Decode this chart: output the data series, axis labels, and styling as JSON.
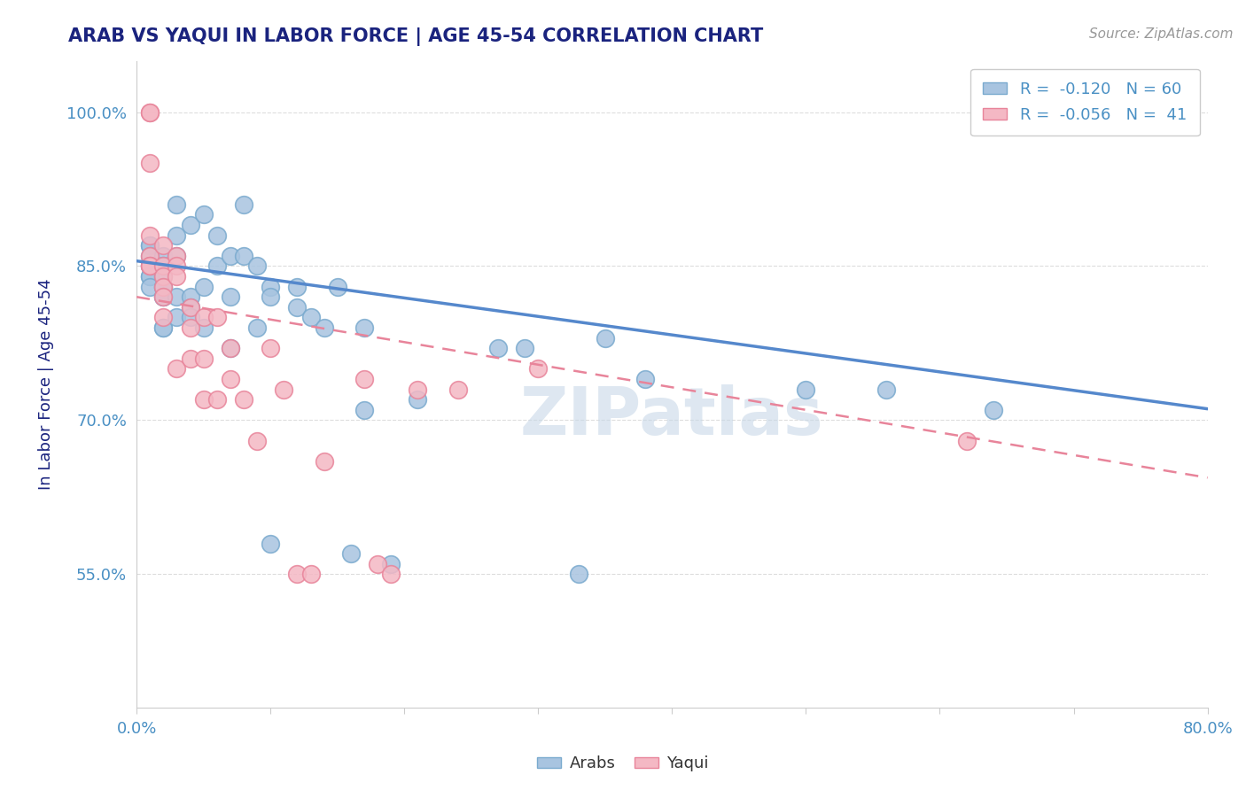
{
  "title": "ARAB VS YAQUI IN LABOR FORCE | AGE 45-54 CORRELATION CHART",
  "source_text": "Source: ZipAtlas.com",
  "xlabel": "",
  "ylabel": "In Labor Force | Age 45-54",
  "xlim": [
    0.0,
    0.8
  ],
  "ylim": [
    0.42,
    1.05
  ],
  "xticks": [
    0.0,
    0.1,
    0.2,
    0.3,
    0.4,
    0.5,
    0.6,
    0.7,
    0.8
  ],
  "xticklabels": [
    "0.0%",
    "",
    "",
    "",
    "",
    "",
    "",
    "",
    "80.0%"
  ],
  "ytick_positions": [
    0.55,
    0.7,
    0.85,
    1.0
  ],
  "ytick_labels": [
    "55.0%",
    "70.0%",
    "85.0%",
    "100.0%"
  ],
  "arab_color": "#a8c4e0",
  "yaqui_color": "#f4b8c4",
  "arab_edge_color": "#7aaace",
  "yaqui_edge_color": "#e8849a",
  "trendline_arab_color": "#5588cc",
  "trendline_yaqui_color": "#e8849a",
  "legend_arab_R": "-0.120",
  "legend_arab_N": "60",
  "legend_yaqui_R": "-0.056",
  "legend_yaqui_N": "41",
  "watermark": "ZIPatlas",
  "arab_x": [
    0.01,
    0.01,
    0.01,
    0.01,
    0.01,
    0.01,
    0.01,
    0.01,
    0.02,
    0.02,
    0.02,
    0.02,
    0.02,
    0.02,
    0.02,
    0.02,
    0.02,
    0.02,
    0.03,
    0.03,
    0.03,
    0.03,
    0.03,
    0.04,
    0.04,
    0.04,
    0.04,
    0.05,
    0.05,
    0.05,
    0.06,
    0.06,
    0.07,
    0.07,
    0.07,
    0.08,
    0.08,
    0.09,
    0.09,
    0.1,
    0.1,
    0.1,
    0.12,
    0.12,
    0.13,
    0.14,
    0.15,
    0.16,
    0.17,
    0.17,
    0.19,
    0.21,
    0.27,
    0.29,
    0.33,
    0.35,
    0.38,
    0.5,
    0.56,
    0.64
  ],
  "arab_y": [
    0.87,
    0.87,
    0.86,
    0.85,
    0.85,
    0.84,
    0.84,
    0.83,
    0.86,
    0.85,
    0.85,
    0.84,
    0.83,
    0.83,
    0.82,
    0.82,
    0.79,
    0.79,
    0.91,
    0.88,
    0.86,
    0.82,
    0.8,
    0.89,
    0.82,
    0.81,
    0.8,
    0.9,
    0.83,
    0.79,
    0.88,
    0.85,
    0.86,
    0.82,
    0.77,
    0.91,
    0.86,
    0.85,
    0.79,
    0.83,
    0.82,
    0.58,
    0.83,
    0.81,
    0.8,
    0.79,
    0.83,
    0.57,
    0.79,
    0.71,
    0.56,
    0.72,
    0.77,
    0.77,
    0.55,
    0.78,
    0.74,
    0.73,
    0.73,
    0.71
  ],
  "yaqui_x": [
    0.01,
    0.01,
    0.01,
    0.01,
    0.01,
    0.01,
    0.01,
    0.02,
    0.02,
    0.02,
    0.02,
    0.02,
    0.02,
    0.03,
    0.03,
    0.03,
    0.03,
    0.04,
    0.04,
    0.04,
    0.05,
    0.05,
    0.05,
    0.06,
    0.06,
    0.07,
    0.07,
    0.08,
    0.09,
    0.1,
    0.11,
    0.12,
    0.13,
    0.14,
    0.17,
    0.18,
    0.19,
    0.21,
    0.24,
    0.3,
    0.62
  ],
  "yaqui_y": [
    1.0,
    1.0,
    0.95,
    0.88,
    0.86,
    0.85,
    0.85,
    0.87,
    0.85,
    0.84,
    0.83,
    0.82,
    0.8,
    0.86,
    0.85,
    0.84,
    0.75,
    0.81,
    0.79,
    0.76,
    0.8,
    0.76,
    0.72,
    0.8,
    0.72,
    0.77,
    0.74,
    0.72,
    0.68,
    0.77,
    0.73,
    0.55,
    0.55,
    0.66,
    0.74,
    0.56,
    0.55,
    0.73,
    0.73,
    0.75,
    0.68
  ],
  "background_color": "#ffffff",
  "grid_color": "#dddddd",
  "title_color": "#1a237e",
  "axis_label_color": "#1a237e",
  "tick_color": "#4a90c4",
  "watermark_color": "#c8d8e8",
  "arab_trendline_intercept": 0.855,
  "arab_trendline_slope": -0.18,
  "yaqui_trendline_intercept": 0.82,
  "yaqui_trendline_slope": -0.22
}
